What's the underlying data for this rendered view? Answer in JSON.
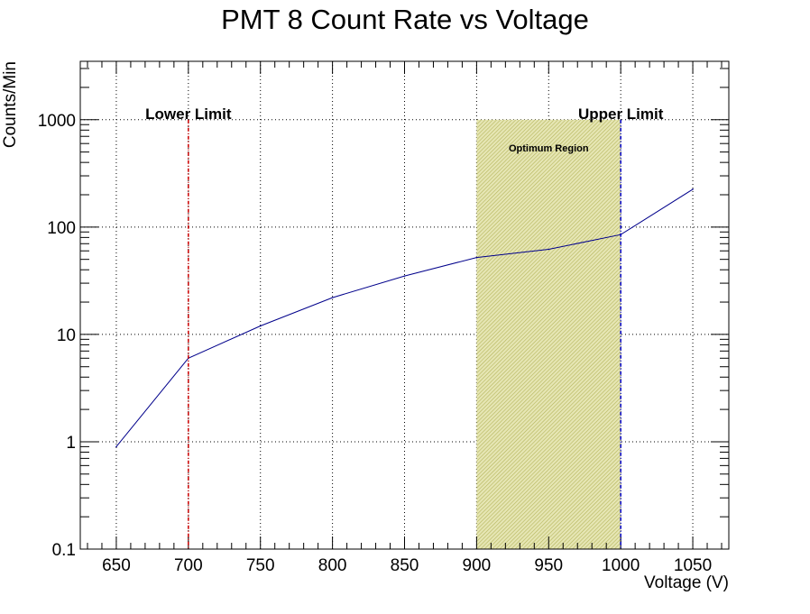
{
  "chart_data": {
    "type": "line",
    "title": "PMT 8 Count Rate vs Voltage",
    "xlabel": "Voltage (V)",
    "ylabel": "Counts/Min",
    "xlim": [
      625,
      1075
    ],
    "ylim": [
      0.1,
      3500
    ],
    "y_scale": "log",
    "grid": true,
    "x_ticks": [
      650,
      700,
      750,
      800,
      850,
      900,
      950,
      1000,
      1050
    ],
    "x_tick_labels": [
      "650",
      "700",
      "750",
      "800",
      "850",
      "900",
      "950",
      "1000",
      "1050"
    ],
    "y_ticks": [
      0.1,
      1,
      10,
      100,
      1000
    ],
    "y_tick_labels": [
      "0.1",
      "1",
      "10",
      "100",
      "1000"
    ],
    "series": [
      {
        "x": [
          650,
          700,
          750,
          800,
          850,
          900,
          950,
          1000,
          1050
        ],
        "y": [
          0.9,
          6,
          12,
          22,
          35,
          52,
          62,
          85,
          225
        ],
        "color": "#00008b"
      }
    ],
    "vertical_lines": [
      {
        "x": 700,
        "label": "Lower Limit",
        "color": "#cc0000"
      },
      {
        "x": 1000,
        "label": "Upper Limit",
        "color": "#0000cc"
      }
    ],
    "shaded_region": {
      "x0": 900,
      "x1": 1000,
      "y_top": 1000,
      "label": "Optimum Region",
      "color": "#c8c864"
    },
    "colors": {
      "line": "#00008b",
      "lower_limit": "#cc0000",
      "upper_limit": "#0000cc",
      "region": "#c8c864",
      "frame": "#000000",
      "grid": "#000000"
    }
  }
}
